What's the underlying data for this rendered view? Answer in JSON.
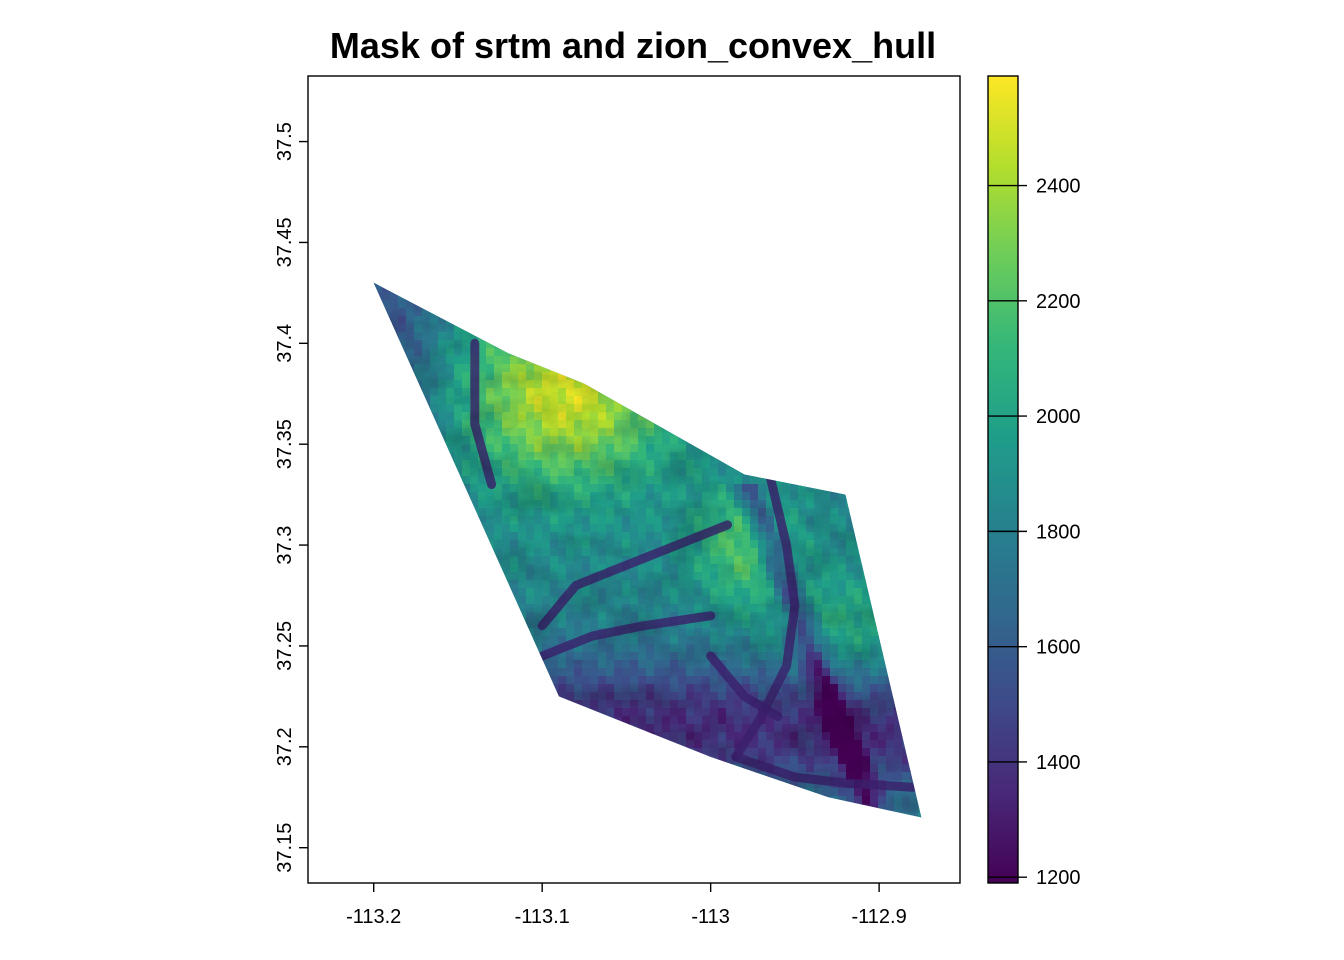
{
  "chart_data": {
    "type": "heatmap",
    "title": "Mask of srtm and zion_convex_hull",
    "xlabel": "",
    "ylabel": "",
    "x_range": [
      -113.239,
      -112.852
    ],
    "y_range": [
      37.1325,
      37.5325
    ],
    "x_ticks": [
      {
        "value": -113.2,
        "label": "-113.2"
      },
      {
        "value": -113.1,
        "label": "-113.1"
      },
      {
        "value": -113.0,
        "label": "-113"
      },
      {
        "value": -112.9,
        "label": "-112.9"
      }
    ],
    "y_ticks": [
      {
        "value": 37.15,
        "label": "37.15"
      },
      {
        "value": 37.2,
        "label": "37.2"
      },
      {
        "value": 37.25,
        "label": "37.25"
      },
      {
        "value": 37.3,
        "label": "37.3"
      },
      {
        "value": 37.35,
        "label": "37.35"
      },
      {
        "value": 37.4,
        "label": "37.4"
      },
      {
        "value": 37.45,
        "label": "37.45"
      },
      {
        "value": 37.5,
        "label": "37.5"
      }
    ],
    "hull_polygon": [
      [
        -113.2,
        37.43
      ],
      [
        -113.12,
        37.395
      ],
      [
        -113.075,
        37.38
      ],
      [
        -112.98,
        37.335
      ],
      [
        -112.92,
        37.325
      ],
      [
        -112.875,
        37.165
      ],
      [
        -112.93,
        37.175
      ],
      [
        -113.0,
        37.195
      ],
      [
        -113.09,
        37.225
      ]
    ],
    "colorbar": {
      "min": 1190,
      "max": 2590,
      "ticks": [
        {
          "value": 1200,
          "label": "1200"
        },
        {
          "value": 1400,
          "label": "1400"
        },
        {
          "value": 1600,
          "label": "1600"
        },
        {
          "value": 1800,
          "label": "1800"
        },
        {
          "value": 2000,
          "label": "2000"
        },
        {
          "value": 2200,
          "label": "2200"
        },
        {
          "value": 2400,
          "label": "2400"
        }
      ],
      "palette": [
        "#440154",
        "#482878",
        "#3E4A89",
        "#31688E",
        "#26828E",
        "#1F9E89",
        "#35B779",
        "#6DCD59",
        "#B4DE2C",
        "#FDE725"
      ]
    },
    "legend_position": "right",
    "grid": false
  }
}
